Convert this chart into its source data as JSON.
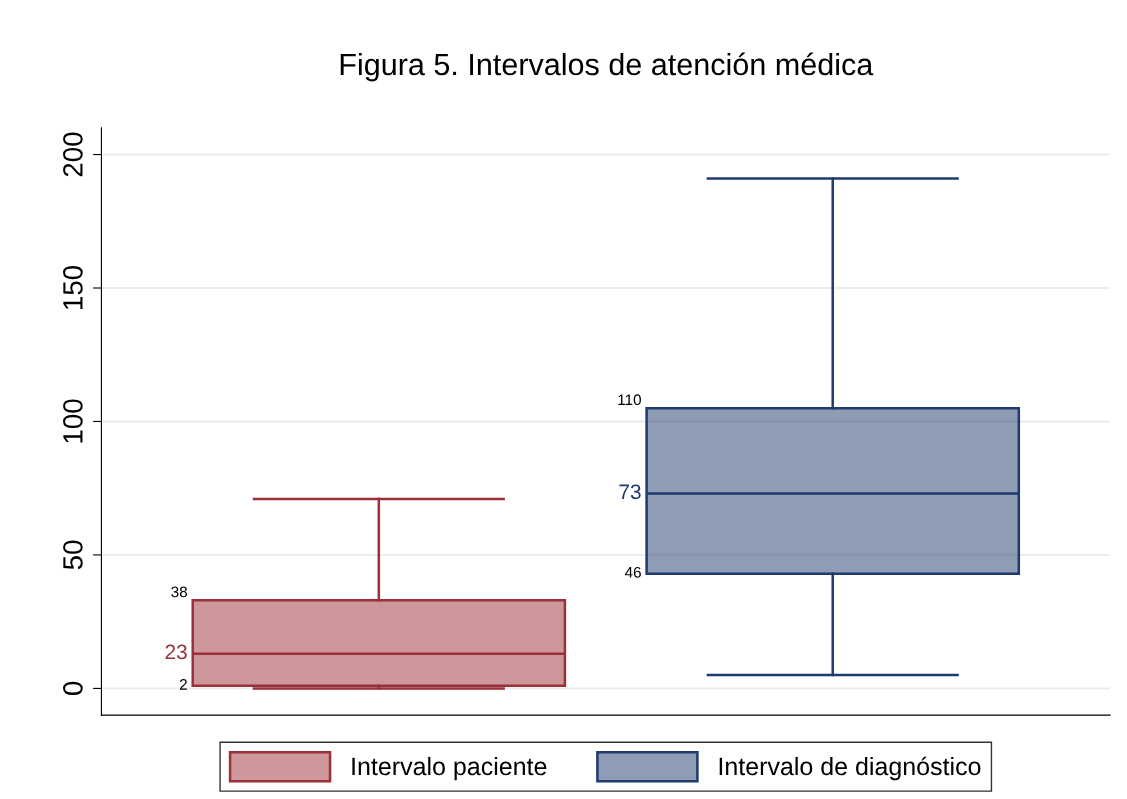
{
  "chart_data": {
    "type": "box",
    "title": "Figura 5. Intervalos de atención médica",
    "categories": [
      null
    ],
    "series": [
      {
        "name": "Intervalo paciente",
        "color": "#9b2f3a",
        "boxes": [
          {
            "low": 0,
            "q1": 1,
            "median": 13,
            "q3": 33,
            "high": 71
          }
        ]
      },
      {
        "name": "Intervalo de diagnóstico",
        "color": "#1f3a6e",
        "boxes": [
          {
            "low": 5,
            "q1": 43,
            "median": 73,
            "q3": 105,
            "high": 191
          }
        ]
      }
    ],
    "annotations": [
      "38",
      "23",
      "2",
      "110",
      "73",
      "46"
    ],
    "ylim": [
      -10,
      210
    ],
    "yticks": [
      0,
      50,
      100,
      150,
      200
    ],
    "grid": "y",
    "legend": "bottom",
    "tick_labels": "y"
  }
}
